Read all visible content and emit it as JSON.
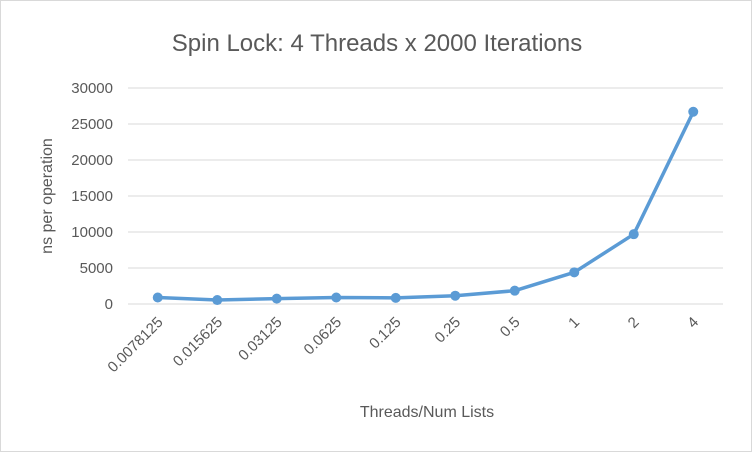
{
  "chart_data": {
    "type": "line",
    "title": "Spin Lock: 4 Threads x 2000  Iterations",
    "xlabel": "Threads/Num Lists",
    "ylabel": "ns per operation",
    "categories": [
      "0.0078125",
      "0.015625",
      "0.03125",
      "0.0625",
      "0.125",
      "0.25",
      "0.5",
      "1",
      "2",
      "4"
    ],
    "series": [
      {
        "values": [
          900,
          550,
          750,
          900,
          850,
          1150,
          1850,
          4400,
          9700,
          26700
        ],
        "color": "#5b9bd5"
      }
    ],
    "ylim": [
      0,
      30000
    ],
    "yticks": [
      0,
      5000,
      10000,
      15000,
      20000,
      25000,
      30000
    ],
    "grid": true,
    "legend": "none"
  }
}
